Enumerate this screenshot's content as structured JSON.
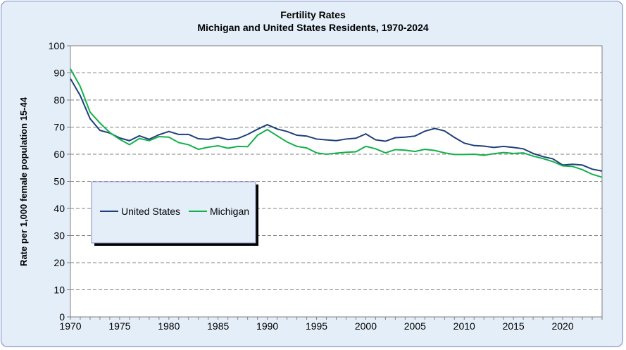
{
  "chart_data": {
    "type": "line",
    "title": "Fertility Rates",
    "subtitle": "Michigan and United States Residents, 1970-2024",
    "xlabel": "",
    "ylabel": "Rate per 1,000 female population 15-44",
    "xlim": [
      1970,
      2024
    ],
    "ylim": [
      0,
      100
    ],
    "xticks": [
      1970,
      1975,
      1980,
      1985,
      1990,
      1995,
      2000,
      2005,
      2010,
      2015,
      2020
    ],
    "yticks": [
      0,
      10,
      20,
      30,
      40,
      50,
      60,
      70,
      80,
      90,
      100
    ],
    "grid": "horizontal dashed",
    "legend": "lower-left",
    "x": [
      1970,
      1971,
      1972,
      1973,
      1974,
      1975,
      1976,
      1977,
      1978,
      1979,
      1980,
      1981,
      1982,
      1983,
      1984,
      1985,
      1986,
      1987,
      1988,
      1989,
      1990,
      1991,
      1992,
      1993,
      1994,
      1995,
      1996,
      1997,
      1998,
      1999,
      2000,
      2001,
      2002,
      2003,
      2004,
      2005,
      2006,
      2007,
      2008,
      2009,
      2010,
      2011,
      2012,
      2013,
      2014,
      2015,
      2016,
      2017,
      2018,
      2019,
      2020,
      2021,
      2022,
      2023,
      2024
    ],
    "series": [
      {
        "name": "United States",
        "color": "#1f3f7a",
        "values": [
          87.9,
          81.6,
          73.1,
          68.8,
          67.8,
          66.0,
          65.0,
          66.8,
          65.5,
          67.2,
          68.4,
          67.3,
          67.3,
          65.7,
          65.5,
          66.3,
          65.4,
          65.8,
          67.3,
          69.2,
          70.9,
          69.3,
          68.4,
          67.0,
          66.7,
          65.6,
          65.3,
          65.0,
          65.6,
          65.9,
          67.5,
          65.3,
          64.8,
          66.1,
          66.3,
          66.7,
          68.5,
          69.5,
          68.6,
          66.2,
          64.1,
          63.2,
          63.0,
          62.5,
          62.9,
          62.5,
          62.0,
          60.3,
          59.1,
          58.3,
          56.0,
          56.3,
          56.0,
          54.5,
          53.8
        ]
      },
      {
        "name": "Michigan",
        "color": "#12b04a",
        "values": [
          91.5,
          85.0,
          75.5,
          71.5,
          68.0,
          65.5,
          63.5,
          65.8,
          65.0,
          66.5,
          66.3,
          64.3,
          63.5,
          61.8,
          62.6,
          63.1,
          62.2,
          62.9,
          62.8,
          67.0,
          69.1,
          66.8,
          64.5,
          62.9,
          62.3,
          60.5,
          60.0,
          60.4,
          60.7,
          60.9,
          62.9,
          62.0,
          60.5,
          61.7,
          61.5,
          61.0,
          61.8,
          61.4,
          60.5,
          59.9,
          59.9,
          60.0,
          59.6,
          60.2,
          60.6,
          60.3,
          60.5,
          59.3,
          58.4,
          57.3,
          55.7,
          55.5,
          54.3,
          52.6,
          51.5
        ]
      }
    ]
  }
}
